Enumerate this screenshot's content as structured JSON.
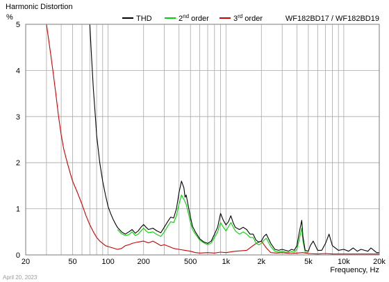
{
  "chart_data": {
    "type": "line",
    "title": "Harmonic Distortion",
    "ylabel": "%",
    "xlabel": "Frequency, Hz",
    "model": "WF182BD17 / WF182BD19",
    "date": "April 20, 2023",
    "x_scale": "log",
    "xlim": [
      20,
      20000
    ],
    "ylim": [
      0,
      5
    ],
    "grid": true,
    "legend_position": "top",
    "x_ticks": [
      {
        "value": 20,
        "label": "20"
      },
      {
        "value": 50,
        "label": "50"
      },
      {
        "value": 100,
        "label": "100"
      },
      {
        "value": 200,
        "label": "200"
      },
      {
        "value": 500,
        "label": "500"
      },
      {
        "value": 1000,
        "label": "1k"
      },
      {
        "value": 2000,
        "label": "2k"
      },
      {
        "value": 5000,
        "label": "5k"
      },
      {
        "value": 10000,
        "label": "10k"
      },
      {
        "value": 20000,
        "label": "20k"
      }
    ],
    "y_ticks": [
      {
        "value": 0,
        "label": "0"
      },
      {
        "value": 1,
        "label": "1"
      },
      {
        "value": 2,
        "label": "2"
      },
      {
        "value": 3,
        "label": "3"
      },
      {
        "value": 4,
        "label": "4"
      },
      {
        "value": 5,
        "label": "5"
      }
    ],
    "series": [
      {
        "name": "THD",
        "color": "#000000",
        "x": [
          70,
          72,
          75,
          78,
          80,
          85,
          90,
          95,
          100,
          105,
          110,
          115,
          120,
          130,
          140,
          150,
          160,
          170,
          180,
          190,
          200,
          210,
          220,
          240,
          260,
          280,
          300,
          320,
          340,
          360,
          380,
          400,
          420,
          440,
          450,
          460,
          480,
          500,
          520,
          550,
          600,
          650,
          700,
          750,
          800,
          850,
          900,
          950,
          1000,
          1050,
          1100,
          1150,
          1200,
          1300,
          1400,
          1500,
          1600,
          1700,
          1800,
          1900,
          2000,
          2100,
          2200,
          2400,
          2600,
          2800,
          3000,
          3200,
          3400,
          3600,
          3800,
          4000,
          4200,
          4400,
          4500,
          4700,
          5000,
          5200,
          5500,
          6000,
          6500,
          7000,
          7500,
          8000,
          9000,
          10000,
          11000,
          12000,
          13000,
          14000,
          15000,
          16000,
          17000,
          18000,
          19000,
          20000
        ],
        "y": [
          5.0,
          4.4,
          3.6,
          3.0,
          2.6,
          2.0,
          1.6,
          1.3,
          1.05,
          0.9,
          0.78,
          0.68,
          0.6,
          0.5,
          0.45,
          0.5,
          0.55,
          0.47,
          0.52,
          0.6,
          0.66,
          0.6,
          0.55,
          0.58,
          0.52,
          0.48,
          0.6,
          0.72,
          0.82,
          0.8,
          1.0,
          1.35,
          1.6,
          1.45,
          1.25,
          1.3,
          1.05,
          0.82,
          0.62,
          0.5,
          0.35,
          0.28,
          0.25,
          0.3,
          0.45,
          0.6,
          0.9,
          0.75,
          0.65,
          0.72,
          0.85,
          0.7,
          0.6,
          0.55,
          0.6,
          0.55,
          0.45,
          0.45,
          0.32,
          0.28,
          0.3,
          0.4,
          0.45,
          0.25,
          0.12,
          0.1,
          0.12,
          0.1,
          0.08,
          0.12,
          0.1,
          0.2,
          0.5,
          0.75,
          0.4,
          0.1,
          0.08,
          0.2,
          0.3,
          0.1,
          0.1,
          0.25,
          0.45,
          0.2,
          0.1,
          0.12,
          0.08,
          0.15,
          0.08,
          0.12,
          0.1,
          0.08,
          0.15,
          0.1,
          0.05,
          0.05
        ]
      },
      {
        "name": "2nd order",
        "color": "#00d400",
        "x": [
          120,
          130,
          140,
          150,
          160,
          170,
          180,
          190,
          200,
          210,
          220,
          240,
          260,
          280,
          300,
          320,
          340,
          360,
          380,
          400,
          420,
          440,
          460,
          480,
          500,
          520,
          550,
          600,
          650,
          700,
          750,
          800,
          850,
          900,
          950,
          1000,
          1100,
          1200,
          1300,
          1400,
          1500,
          1600,
          1700,
          1800,
          1900,
          2000,
          2100,
          2200,
          2400,
          2600,
          2800,
          3000,
          3200,
          3400,
          3600,
          3800,
          4000,
          4200,
          4400,
          4500,
          4700,
          5000
        ],
        "y": [
          0.55,
          0.46,
          0.42,
          0.44,
          0.5,
          0.42,
          0.45,
          0.52,
          0.58,
          0.52,
          0.48,
          0.5,
          0.44,
          0.4,
          0.5,
          0.62,
          0.72,
          0.7,
          0.85,
          1.1,
          1.3,
          1.2,
          1.1,
          0.9,
          0.7,
          0.55,
          0.45,
          0.32,
          0.26,
          0.22,
          0.26,
          0.38,
          0.5,
          0.7,
          0.6,
          0.52,
          0.7,
          0.52,
          0.45,
          0.5,
          0.45,
          0.38,
          0.38,
          0.25,
          0.22,
          0.25,
          0.32,
          0.36,
          0.18,
          0.08,
          0.06,
          0.08,
          0.06,
          0.05,
          0.07,
          0.06,
          0.12,
          0.35,
          0.58,
          0.3,
          0.06,
          0.05
        ]
      },
      {
        "name": "3rd order",
        "color": "#cc0000",
        "x": [
          30,
          32,
          34,
          36,
          38,
          40,
          42,
          45,
          48,
          50,
          55,
          60,
          65,
          70,
          75,
          80,
          85,
          90,
          95,
          100,
          110,
          120,
          130,
          140,
          150,
          160,
          180,
          200,
          220,
          240,
          260,
          280,
          300,
          330,
          360,
          400,
          450,
          500,
          550,
          600,
          700,
          800,
          900,
          1000,
          1200,
          1500,
          1800,
          2000,
          2200,
          2400,
          2700,
          3000,
          3500,
          4000,
          4500,
          5000,
          6000,
          7000,
          8000,
          9000,
          10000,
          12000,
          14000,
          16000,
          18000,
          20000
        ],
        "y": [
          5.0,
          4.5,
          4.0,
          3.5,
          3.0,
          2.6,
          2.3,
          2.0,
          1.75,
          1.6,
          1.35,
          1.1,
          0.85,
          0.65,
          0.5,
          0.38,
          0.3,
          0.25,
          0.2,
          0.18,
          0.15,
          0.12,
          0.14,
          0.2,
          0.22,
          0.25,
          0.28,
          0.3,
          0.26,
          0.3,
          0.25,
          0.2,
          0.22,
          0.18,
          0.14,
          0.12,
          0.1,
          0.08,
          0.05,
          0.04,
          0.05,
          0.04,
          0.06,
          0.05,
          0.08,
          0.1,
          0.25,
          0.3,
          0.15,
          0.05,
          0.04,
          0.05,
          0.03,
          0.04,
          0.05,
          0.03,
          0.02,
          0.03,
          0.02,
          0.02,
          0.02,
          0.02,
          0.02,
          0.02,
          0.02,
          0.02
        ]
      }
    ]
  }
}
